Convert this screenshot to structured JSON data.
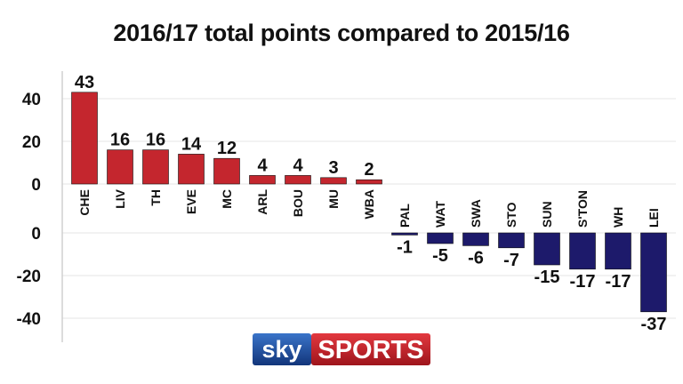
{
  "title": "2016/17 total points compared to 2015/16",
  "chart_data": {
    "type": "bar",
    "title": "2016/17 total points compared to 2015/16",
    "xlabel": "",
    "ylabel": "",
    "categories": [
      "CHE",
      "LIV",
      "TH",
      "EVE",
      "MC",
      "ARL",
      "BOU",
      "MU",
      "WBA",
      "PAL",
      "WAT",
      "SWA",
      "STO",
      "SUN",
      "S'TON",
      "WH",
      "LEI"
    ],
    "values": [
      43,
      16,
      16,
      14,
      12,
      4,
      4,
      3,
      2,
      -1,
      -5,
      -6,
      -7,
      -15,
      -17,
      -17,
      -37
    ],
    "value_labels": [
      "43",
      "16",
      "16",
      "14",
      "12",
      "4",
      "4",
      "3",
      "2",
      "-1",
      "-5",
      "-6",
      "-7",
      "-15",
      "-17",
      "-17",
      "-37"
    ],
    "positive_yticks": [
      0,
      20,
      40
    ],
    "positive_ytick_labels": [
      "0",
      "20",
      "40"
    ],
    "negative_yticks": [
      0,
      -20,
      -40
    ],
    "negative_ytick_labels": [
      "0",
      "-20",
      "-40"
    ],
    "positive_ylim": [
      0,
      48
    ],
    "negative_ylim": [
      -48,
      0
    ],
    "grid": true,
    "colors": {
      "positive": "#c4262e",
      "negative": "#1d1a6b",
      "grid": "#e6e6e6"
    }
  },
  "logo": {
    "sky": "sky",
    "sports": "SPORTS"
  }
}
